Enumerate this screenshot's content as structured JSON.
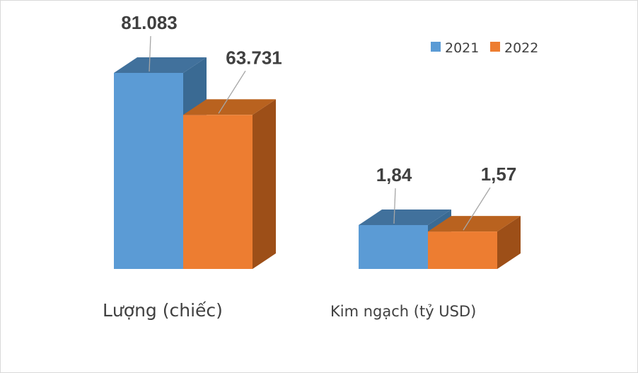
{
  "chart_data": {
    "type": "bar",
    "title": "",
    "categories": [
      "Lượng (chiếc)",
      "Kim ngạch (tỷ USD)"
    ],
    "series": [
      {
        "name": "2021",
        "values": [
          81.083,
          1.84
        ],
        "labels": [
          "81.083",
          "1,84"
        ]
      },
      {
        "name": "2022",
        "values": [
          63.731,
          1.57
        ],
        "labels": [
          "63.731",
          "1,57"
        ]
      }
    ],
    "legend_position": "top-right",
    "grid": false,
    "style": "3d-column",
    "colors": {
      "2021": {
        "front": "#5b9bd5",
        "top": "#41719c",
        "side": "#3a6a93"
      },
      "2022": {
        "front": "#ed7d31",
        "top": "#b9621f",
        "side": "#9d4f18"
      }
    }
  }
}
